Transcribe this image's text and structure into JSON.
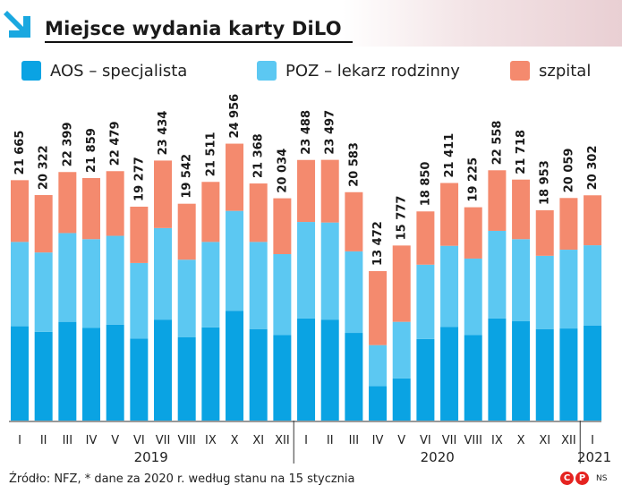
{
  "header": {
    "title": "Miejsce wydania karty DiLO",
    "arrow_icon": "arrow-down-right-icon",
    "arrow_color": "#1aa8e0"
  },
  "legend": [
    {
      "name": "AOS – specjalista",
      "color": "#0aa3e3"
    },
    {
      "name": "POZ – lekarz rodzinny",
      "color": "#5cc8f2"
    },
    {
      "name": "szpital",
      "color": "#f48a6e"
    }
  ],
  "chart_data": {
    "type": "bar",
    "stacked": true,
    "categories": [
      "I",
      "II",
      "III",
      "IV",
      "V",
      "VI",
      "VII",
      "VIII",
      "IX",
      "X",
      "XI",
      "XII",
      "I",
      "II",
      "III",
      "IV",
      "V",
      "VI",
      "VII",
      "VIII",
      "IX",
      "X",
      "XI",
      "XII",
      "I"
    ],
    "years": [
      {
        "label": "2019",
        "from": 0,
        "to": 11
      },
      {
        "label": "2020",
        "from": 12,
        "to": 23
      },
      {
        "label": "2021",
        "from": 24,
        "to": 24
      }
    ],
    "totals": [
      "21 665",
      "20 322",
      "22 399",
      "21 859",
      "22 479",
      "19 277",
      "23 434",
      "19 542",
      "21 511",
      "24 956",
      "21 368",
      "20 034",
      "23 488",
      "23 497",
      "20 583",
      "13 472",
      "15 777",
      "18 850",
      "21 411",
      "19 225",
      "22 558",
      "21 718",
      "18 953",
      "20 059",
      "20 302"
    ],
    "series": [
      {
        "name": "AOS – specjalista",
        "values": [
          8500,
          8000,
          8900,
          8350,
          8650,
          7400,
          9100,
          7500,
          8400,
          9900,
          8250,
          7700,
          9200,
          9100,
          7900,
          3100,
          3800,
          7350,
          8450,
          7700,
          9200,
          8950,
          8250,
          8300,
          8550
        ]
      },
      {
        "name": "POZ – lekarz rodzinny",
        "values": [
          7600,
          7150,
          8000,
          8000,
          8000,
          6800,
          8250,
          7000,
          7700,
          9000,
          7850,
          7300,
          8700,
          8750,
          7350,
          3700,
          5100,
          6700,
          7300,
          6900,
          7900,
          7400,
          6600,
          7100,
          7250
        ]
      },
      {
        "name": "szpital",
        "values": [
          5565,
          5172,
          5499,
          5509,
          5829,
          5077,
          6084,
          5042,
          5411,
          6056,
          5268,
          5034,
          5588,
          5647,
          5333,
          6672,
          6877,
          4800,
          5661,
          4625,
          5458,
          5368,
          4103,
          4659,
          4502
        ]
      }
    ],
    "ylim": [
      0,
      25000
    ]
  },
  "footer": {
    "source": "Źródło: NFZ, * dane za 2020 r. według stanu na 15 stycznia",
    "logo_letters": [
      "C",
      "P"
    ],
    "logo_color": "#e52320",
    "credit": "NS"
  }
}
